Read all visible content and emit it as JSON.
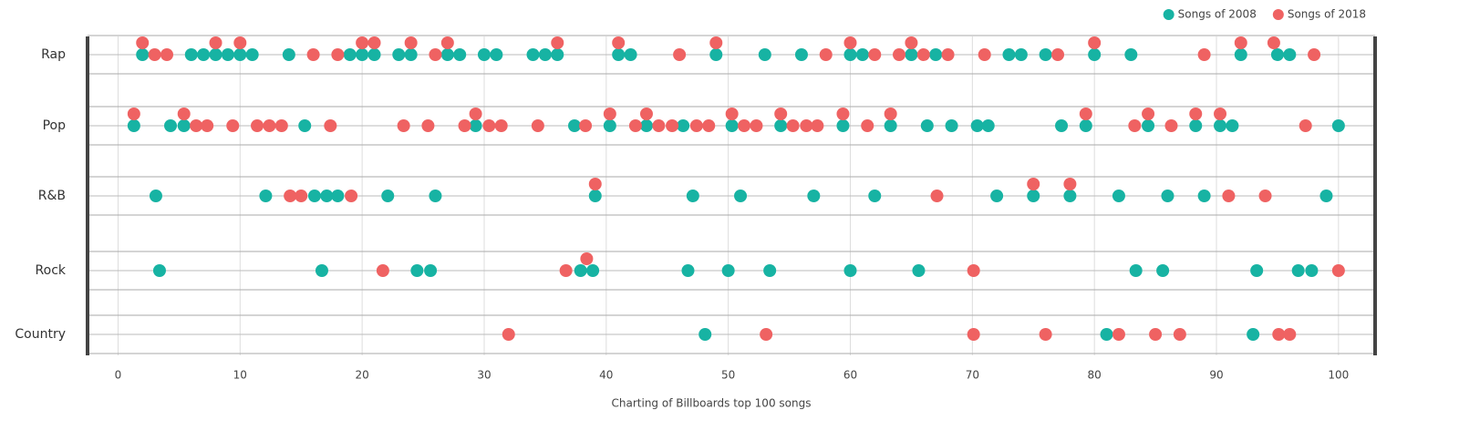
{
  "chart_data": {
    "type": "strip",
    "x_label": "Charting of Billboards top 100 songs",
    "categories": [
      "Rap",
      "Pop",
      "R&B",
      "Rock",
      "Country"
    ],
    "xlim": [
      -2.5,
      103
    ],
    "xticks": [
      0,
      10,
      20,
      30,
      40,
      50,
      60,
      70,
      80,
      90,
      100
    ],
    "grid": true,
    "legend": "top-right",
    "series": [
      {
        "name": "Songs of 2008",
        "color": "#17b3a3",
        "values": [
          [
            2,
            6,
            7,
            8,
            9,
            10,
            11,
            14,
            19,
            20,
            21,
            23,
            24,
            27,
            28,
            30,
            31,
            34,
            35,
            36,
            41,
            42,
            49,
            53,
            56,
            60,
            61,
            65,
            67,
            73,
            74,
            76,
            80,
            83,
            92,
            95,
            96
          ],
          [
            1.3,
            4.3,
            5.4,
            15.3,
            29.3,
            37.4,
            40.3,
            43.3,
            46.3,
            50.3,
            54.3,
            59.4,
            63.3,
            66.3,
            68.3,
            70.4,
            71.3,
            77.3,
            79.3,
            84.4,
            88.3,
            90.3,
            91.3,
            100
          ],
          [
            3.1,
            12.1,
            16.1,
            17.1,
            18,
            22.1,
            26,
            39.1,
            47.1,
            51,
            57,
            62,
            72,
            75,
            78,
            82,
            86,
            89,
            99
          ],
          [
            3.4,
            16.7,
            24.5,
            25.6,
            37.9,
            38.9,
            46.7,
            50,
            53.4,
            60,
            65.6,
            83.4,
            85.6,
            93.3,
            96.7,
            97.8
          ],
          [
            48.1,
            81,
            93
          ]
        ]
      },
      {
        "name": "Songs of 2018",
        "color": "#ef6262",
        "values": [
          [
            2,
            3,
            4,
            8,
            10,
            16,
            18,
            20,
            21,
            24,
            26,
            27,
            36,
            41,
            46,
            49,
            58,
            60,
            62,
            64,
            65,
            66,
            68,
            71,
            77,
            80,
            89,
            92,
            94.7,
            98
          ],
          [
            1.3,
            5.4,
            6.4,
            7.3,
            9.4,
            11.4,
            12.4,
            13.4,
            17.4,
            23.4,
            25.4,
            28.4,
            29.3,
            30.4,
            31.4,
            34.4,
            38.3,
            40.3,
            42.4,
            43.3,
            44.3,
            45.4,
            47.4,
            48.4,
            50.3,
            51.3,
            52.3,
            54.3,
            55.3,
            56.4,
            57.3,
            59.4,
            61.4,
            63.3,
            79.3,
            83.3,
            84.4,
            86.3,
            88.3,
            90.3,
            97.3
          ],
          [
            14.1,
            15,
            19.1,
            39.1,
            67.1,
            75,
            78,
            91,
            94
          ],
          [
            21.7,
            36.7,
            38.4,
            70.1,
            100
          ],
          [
            32,
            53.1,
            70.1,
            76,
            82,
            85,
            87,
            95.1,
            96
          ]
        ]
      }
    ]
  }
}
